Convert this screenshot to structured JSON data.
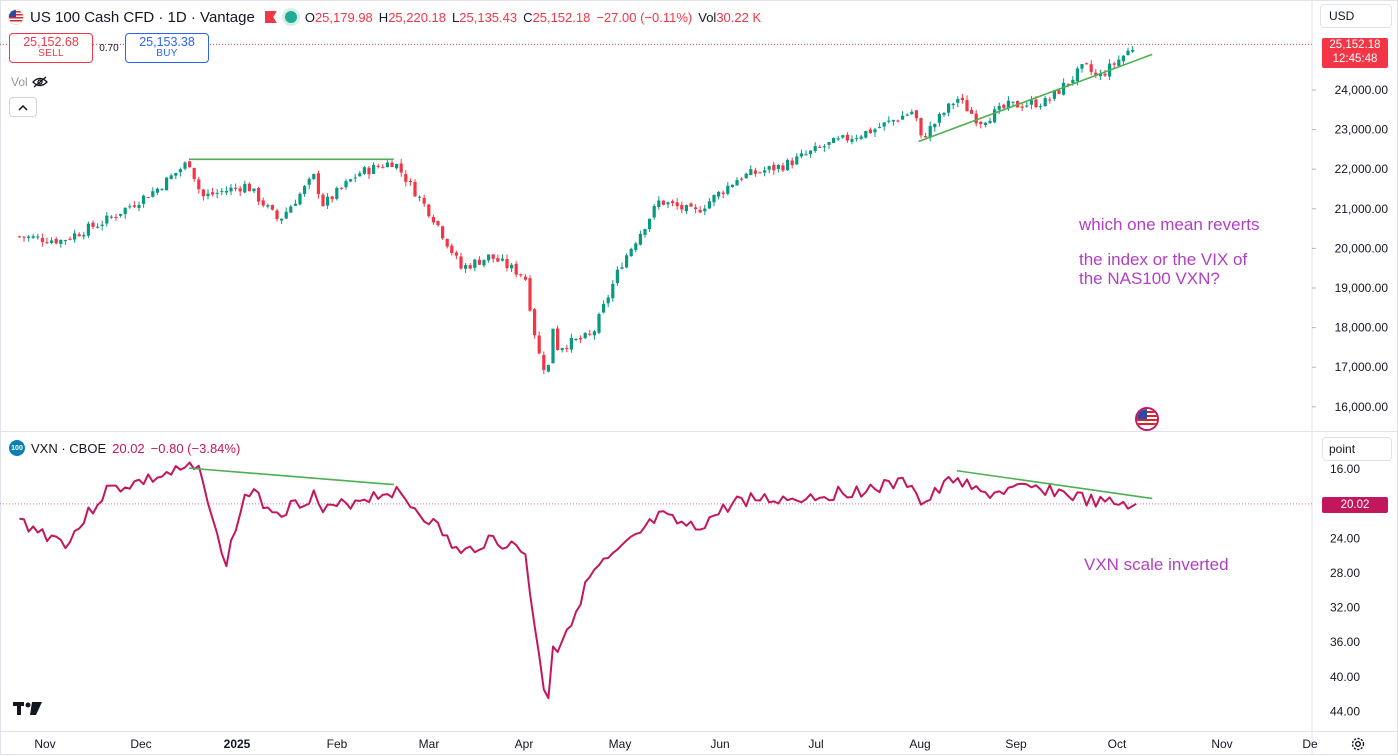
{
  "header": {
    "symbol": "US 100 Cash CFD · 1D · Vantage",
    "o_label": "O",
    "o_value": "25,179.98",
    "h_label": "H",
    "h_value": "25,220.18",
    "l_label": "L",
    "l_value": "25,135.43",
    "c_label": "C",
    "c_value": "25,152.18",
    "change": "−27.00 (−0.11%)",
    "vol_label": "Vol",
    "vol_value": "30.22 K"
  },
  "trade": {
    "sell_price": "25,152.68",
    "sell_label": "SELL",
    "spread": "0.70",
    "buy_price": "25,153.38",
    "buy_label": "BUY"
  },
  "vol_toggle": "Vol",
  "currency": "USD",
  "scale_mode": "point",
  "price_label": {
    "value": "25,152.18",
    "countdown": "12:45:48"
  },
  "vxn_header": {
    "symbol": "VXN · CBOE",
    "value": "20.02",
    "change": "−0.80 (−3.84%)",
    "badge": "100"
  },
  "vxn_label": "20.02",
  "notes": {
    "note1": "which one mean reverts",
    "note2a": "the index or the VIX of",
    "note2b": "the NAS100 VXN?",
    "note3": "VXN scale inverted"
  },
  "colors": {
    "up": "#089981",
    "down": "#f23645",
    "vxn": "#c3175d",
    "trendline": "#4caf50",
    "annotation": "#b13fc4",
    "buy": "#2962ff"
  },
  "chart_data": [
    {
      "type": "candlestick",
      "title": "US 100 Cash CFD · 1D · Vantage",
      "ylim": [
        15700,
        25500
      ],
      "y_ticks": [
        "24,000.00",
        "23,000.00",
        "22,000.00",
        "21,000.00",
        "20,000.00",
        "19,000.00",
        "18,000.00",
        "17,000.00",
        "16,000.00"
      ],
      "x_ticks": [
        "Nov",
        "Dec",
        "2025",
        "Feb",
        "Mar",
        "Apr",
        "May",
        "Jun",
        "Jul",
        "Aug",
        "Sep",
        "Oct",
        "Nov",
        "De"
      ],
      "last_price": 25152.18,
      "series": [
        {
          "name": "US 100 Cash CFD",
          "x": [
            "2024-10-24",
            "2024-11-06",
            "2024-11-20",
            "2024-12-06",
            "2024-12-16",
            "2024-12-20",
            "2025-01-03",
            "2025-01-13",
            "2025-01-24",
            "2025-01-27",
            "2025-02-07",
            "2025-02-18",
            "2025-03-03",
            "2025-03-11",
            "2025-03-20",
            "2025-03-31",
            "2025-04-04",
            "2025-04-07",
            "2025-04-09",
            "2025-04-10",
            "2025-04-21",
            "2025-04-30",
            "2025-05-12",
            "2025-05-23",
            "2025-06-06",
            "2025-06-20",
            "2025-07-03",
            "2025-07-18",
            "2025-07-31",
            "2025-08-01",
            "2025-08-13",
            "2025-08-20",
            "2025-08-29",
            "2025-09-10",
            "2025-09-22",
            "2025-09-26",
            "2025-10-08"
          ],
          "values": [
            20300,
            20200,
            20700,
            21500,
            22200,
            21300,
            21600,
            20700,
            21800,
            21100,
            21900,
            22200,
            20700,
            19500,
            19800,
            19300,
            17400,
            16800,
            18200,
            17500,
            17800,
            19600,
            21200,
            20900,
            21800,
            22100,
            22600,
            23000,
            23500,
            22700,
            23800,
            23200,
            23600,
            23700,
            24600,
            24300,
            25152
          ]
        }
      ],
      "trendlines": [
        {
          "from": [
            "2024-12-16",
            22250
          ],
          "to": [
            "2025-02-18",
            22250
          ]
        },
        {
          "from": [
            "2025-08-01",
            22700
          ],
          "to": [
            "2025-10-13",
            24900
          ]
        }
      ]
    },
    {
      "type": "line",
      "title": "VXN · CBOE",
      "inverted_scale": true,
      "ylim": [
        45,
        14.5
      ],
      "y_ticks": [
        "16.00",
        "24.00",
        "28.00",
        "32.00",
        "36.00",
        "40.00",
        "44.00"
      ],
      "last_value": 20.02,
      "series": [
        {
          "name": "VXN · CBOE",
          "x": [
            "2024-10-24",
            "2024-11-01",
            "2024-11-08",
            "2024-11-20",
            "2024-12-06",
            "2024-12-16",
            "2024-12-20",
            "2024-12-27",
            "2025-01-03",
            "2025-01-13",
            "2025-01-24",
            "2025-01-27",
            "2025-02-07",
            "2025-02-18",
            "2025-03-03",
            "2025-03-11",
            "2025-03-20",
            "2025-03-31",
            "2025-04-04",
            "2025-04-07",
            "2025-04-09",
            "2025-04-10",
            "2025-04-21",
            "2025-04-30",
            "2025-05-12",
            "2025-05-23",
            "2025-06-06",
            "2025-06-20",
            "2025-07-03",
            "2025-07-18",
            "2025-07-31",
            "2025-08-01",
            "2025-08-13",
            "2025-08-20",
            "2025-08-29",
            "2025-09-10",
            "2025-09-22",
            "2025-09-26",
            "2025-10-08"
          ],
          "values": [
            22,
            23.5,
            24.5,
            18.5,
            17,
            16,
            16.2,
            27.5,
            18.5,
            21,
            19,
            21,
            19.5,
            18.5,
            22.5,
            26,
            24,
            25.5,
            37,
            43.5,
            35,
            37,
            28,
            25.5,
            21.5,
            23,
            19.5,
            19.5,
            19,
            18.2,
            17.5,
            20.5,
            16.8,
            19,
            18.5,
            18.3,
            19.5,
            20,
            20.02
          ]
        }
      ],
      "trendlines": [
        {
          "from": [
            "2024-12-16",
            15.9
          ],
          "to": [
            "2025-02-18",
            17.8
          ]
        },
        {
          "from": [
            "2025-08-13",
            16.2
          ],
          "to": [
            "2025-10-13",
            19.4
          ]
        }
      ]
    }
  ]
}
